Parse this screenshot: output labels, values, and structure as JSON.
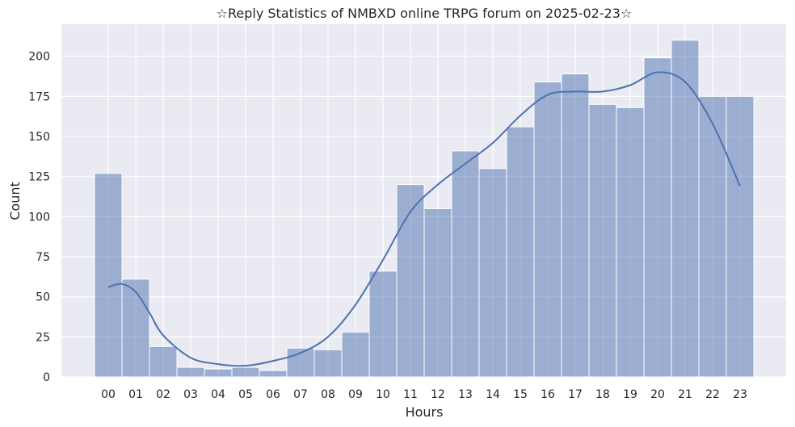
{
  "chart_data": {
    "type": "bar",
    "title": "☆Reply Statistics of NMBXD online TRPG forum on 2025-02-23☆",
    "xlabel": "Hours",
    "ylabel": "Count",
    "categories": [
      "00",
      "01",
      "02",
      "03",
      "04",
      "05",
      "06",
      "07",
      "08",
      "09",
      "10",
      "11",
      "12",
      "13",
      "14",
      "15",
      "16",
      "17",
      "18",
      "19",
      "20",
      "21",
      "22",
      "23"
    ],
    "values": [
      127,
      61,
      19,
      6,
      5,
      6,
      4,
      18,
      17,
      28,
      66,
      120,
      105,
      141,
      130,
      156,
      184,
      189,
      170,
      168,
      199,
      210,
      175,
      175
    ],
    "ylim": [
      0,
      220
    ],
    "yticks": [
      0,
      25,
      50,
      75,
      100,
      125,
      150,
      175,
      200
    ],
    "kde": {
      "x": [
        0,
        0.5,
        1,
        1.5,
        2,
        3,
        4,
        5,
        6,
        7,
        8,
        9,
        10,
        11,
        12,
        13,
        14,
        15,
        16,
        17,
        18,
        19,
        20,
        21,
        22,
        23
      ],
      "y": [
        56,
        58,
        53,
        40,
        26,
        12,
        8,
        7,
        10,
        15,
        25,
        45,
        73,
        103,
        120,
        133,
        146,
        163,
        176,
        178,
        178,
        182,
        190,
        184,
        158,
        119
      ]
    },
    "colors": {
      "bar": "#4c72b0",
      "line": "#4c72b0",
      "plot_background": "#eaeaf2",
      "grid": "#ffffff"
    },
    "grid": true
  }
}
